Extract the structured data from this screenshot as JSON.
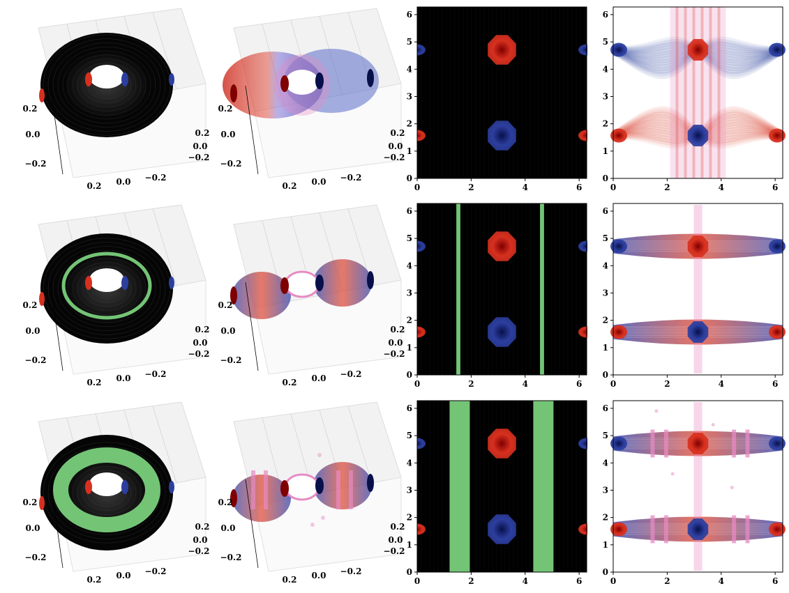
{
  "figure": {
    "colors": {
      "background_black": "#000000",
      "red": "#d7301f",
      "dark_red": "#7f0000",
      "blue": "#2c3e9e",
      "dark_blue": "#08104a",
      "green": "#74c476",
      "pink": "#e78ac3",
      "pane_grey": "#f2f2f2"
    },
    "rows": [
      {
        "row": 1,
        "green_band": "none"
      },
      {
        "row": 2,
        "green_band": "thin lines at x ≈ 1.5 and x ≈ 4.6"
      },
      {
        "row": 3,
        "green_band": "wide bands x ≈ 1.2–1.9 and x ≈ 4.3–5.0"
      }
    ]
  },
  "chart_data": [
    {
      "type": "surface3d",
      "row": 1,
      "col": 1,
      "tick_labels": {
        "z": [
          "0.2",
          "0.0",
          "−0.2"
        ],
        "x": [
          "0.2",
          "0.0",
          "−0.2"
        ],
        "y": [
          "0.2",
          "0.0",
          "−0.2"
        ]
      },
      "green_region": "none"
    },
    {
      "type": "surface3d",
      "row": 1,
      "col": 2,
      "tick_labels": {
        "z": [
          "0.2",
          "0.0",
          "−0.2"
        ],
        "x": [
          "0.2",
          "0.0",
          "−0.2"
        ],
        "y": [
          "0.2",
          "0.0",
          "−0.2"
        ]
      }
    },
    {
      "type": "heatmap",
      "row": 1,
      "col": 3,
      "xlim": [
        0,
        6.28
      ],
      "ylim": [
        0,
        6.28
      ],
      "xticks": [
        "0",
        "2",
        "4",
        "6"
      ],
      "yticks": [
        "0",
        "1",
        "2",
        "3",
        "4",
        "5",
        "6"
      ],
      "green_bands": [],
      "blobs": [
        {
          "x": 3.14,
          "y": 4.71,
          "color": "red"
        },
        {
          "x": 3.14,
          "y": 1.57,
          "color": "blue"
        },
        {
          "x": 0.0,
          "y": 4.71,
          "color": "blue"
        },
        {
          "x": 6.28,
          "y": 4.71,
          "color": "blue"
        },
        {
          "x": 0.0,
          "y": 1.57,
          "color": "red"
        },
        {
          "x": 6.28,
          "y": 1.57,
          "color": "red"
        }
      ]
    },
    {
      "type": "scatter",
      "row": 1,
      "col": 4,
      "xlim": [
        0,
        6.28
      ],
      "ylim": [
        0,
        6.28
      ],
      "xticks": [
        "0",
        "2",
        "4",
        "6"
      ],
      "yticks": [
        "0",
        "1",
        "2",
        "3",
        "4",
        "5",
        "6"
      ]
    },
    {
      "type": "surface3d",
      "row": 2,
      "col": 1,
      "tick_labels": {
        "z": [
          "0.2",
          "0.0",
          "−0.2"
        ],
        "x": [
          "0.2",
          "0.0",
          "−0.2"
        ],
        "y": [
          "0.2",
          "0.0",
          "−0.2"
        ]
      },
      "green_region": "thin ring"
    },
    {
      "type": "surface3d",
      "row": 2,
      "col": 2,
      "tick_labels": {
        "z": [
          "0.2",
          "0.0",
          "−0.2"
        ],
        "x": [
          "0.2",
          "0.0",
          "−0.2"
        ],
        "y": [
          "0.2",
          "0.0",
          "−0.2"
        ]
      }
    },
    {
      "type": "heatmap",
      "row": 2,
      "col": 3,
      "xlim": [
        0,
        6.28
      ],
      "ylim": [
        0,
        6.28
      ],
      "xticks": [
        "0",
        "2",
        "4",
        "6"
      ],
      "yticks": [
        "0",
        "1",
        "2",
        "3",
        "4",
        "5",
        "6"
      ],
      "green_bands": [
        [
          1.45,
          1.6
        ],
        [
          4.55,
          4.7
        ]
      ],
      "blobs": [
        {
          "x": 3.14,
          "y": 4.71,
          "color": "red"
        },
        {
          "x": 3.14,
          "y": 1.57,
          "color": "blue"
        },
        {
          "x": 0.0,
          "y": 4.71,
          "color": "blue"
        },
        {
          "x": 6.28,
          "y": 4.71,
          "color": "blue"
        },
        {
          "x": 0.0,
          "y": 1.57,
          "color": "red"
        },
        {
          "x": 6.28,
          "y": 1.57,
          "color": "red"
        }
      ]
    },
    {
      "type": "scatter",
      "row": 2,
      "col": 4,
      "xlim": [
        0,
        6.28
      ],
      "ylim": [
        0,
        6.28
      ],
      "xticks": [
        "0",
        "2",
        "4",
        "6"
      ],
      "yticks": [
        "0",
        "1",
        "2",
        "3",
        "4",
        "5",
        "6"
      ]
    },
    {
      "type": "surface3d",
      "row": 3,
      "col": 1,
      "tick_labels": {
        "z": [
          "0.2",
          "0.0",
          "−0.2"
        ],
        "x": [
          "0.2",
          "0.0",
          "−0.2"
        ],
        "y": [
          "0.2",
          "0.0",
          "−0.2"
        ]
      },
      "green_region": "wide ring"
    },
    {
      "type": "surface3d",
      "row": 3,
      "col": 2,
      "tick_labels": {
        "z": [
          "0.2",
          "0.0",
          "−0.2"
        ],
        "x": [
          "0.2",
          "0.0",
          "−0.2"
        ],
        "y": [
          "0.2",
          "0.0",
          "−0.2"
        ]
      }
    },
    {
      "type": "heatmap",
      "row": 3,
      "col": 3,
      "xlim": [
        0,
        6.28
      ],
      "ylim": [
        0,
        6.28
      ],
      "xticks": [
        "0",
        "2",
        "4",
        "6"
      ],
      "yticks": [
        "0",
        "1",
        "2",
        "3",
        "4",
        "5",
        "6"
      ],
      "green_bands": [
        [
          1.2,
          1.95
        ],
        [
          4.3,
          5.05
        ]
      ],
      "blobs": [
        {
          "x": 3.14,
          "y": 4.71,
          "color": "red"
        },
        {
          "x": 3.14,
          "y": 1.57,
          "color": "blue"
        },
        {
          "x": 0.0,
          "y": 4.71,
          "color": "blue"
        },
        {
          "x": 6.28,
          "y": 4.71,
          "color": "blue"
        },
        {
          "x": 0.0,
          "y": 1.57,
          "color": "red"
        },
        {
          "x": 6.28,
          "y": 1.57,
          "color": "red"
        }
      ]
    },
    {
      "type": "scatter",
      "row": 3,
      "col": 4,
      "xlim": [
        0,
        6.28
      ],
      "ylim": [
        0,
        6.28
      ],
      "xticks": [
        "0",
        "2",
        "4",
        "6"
      ],
      "yticks": [
        "0",
        "1",
        "2",
        "3",
        "4",
        "5",
        "6"
      ]
    }
  ]
}
